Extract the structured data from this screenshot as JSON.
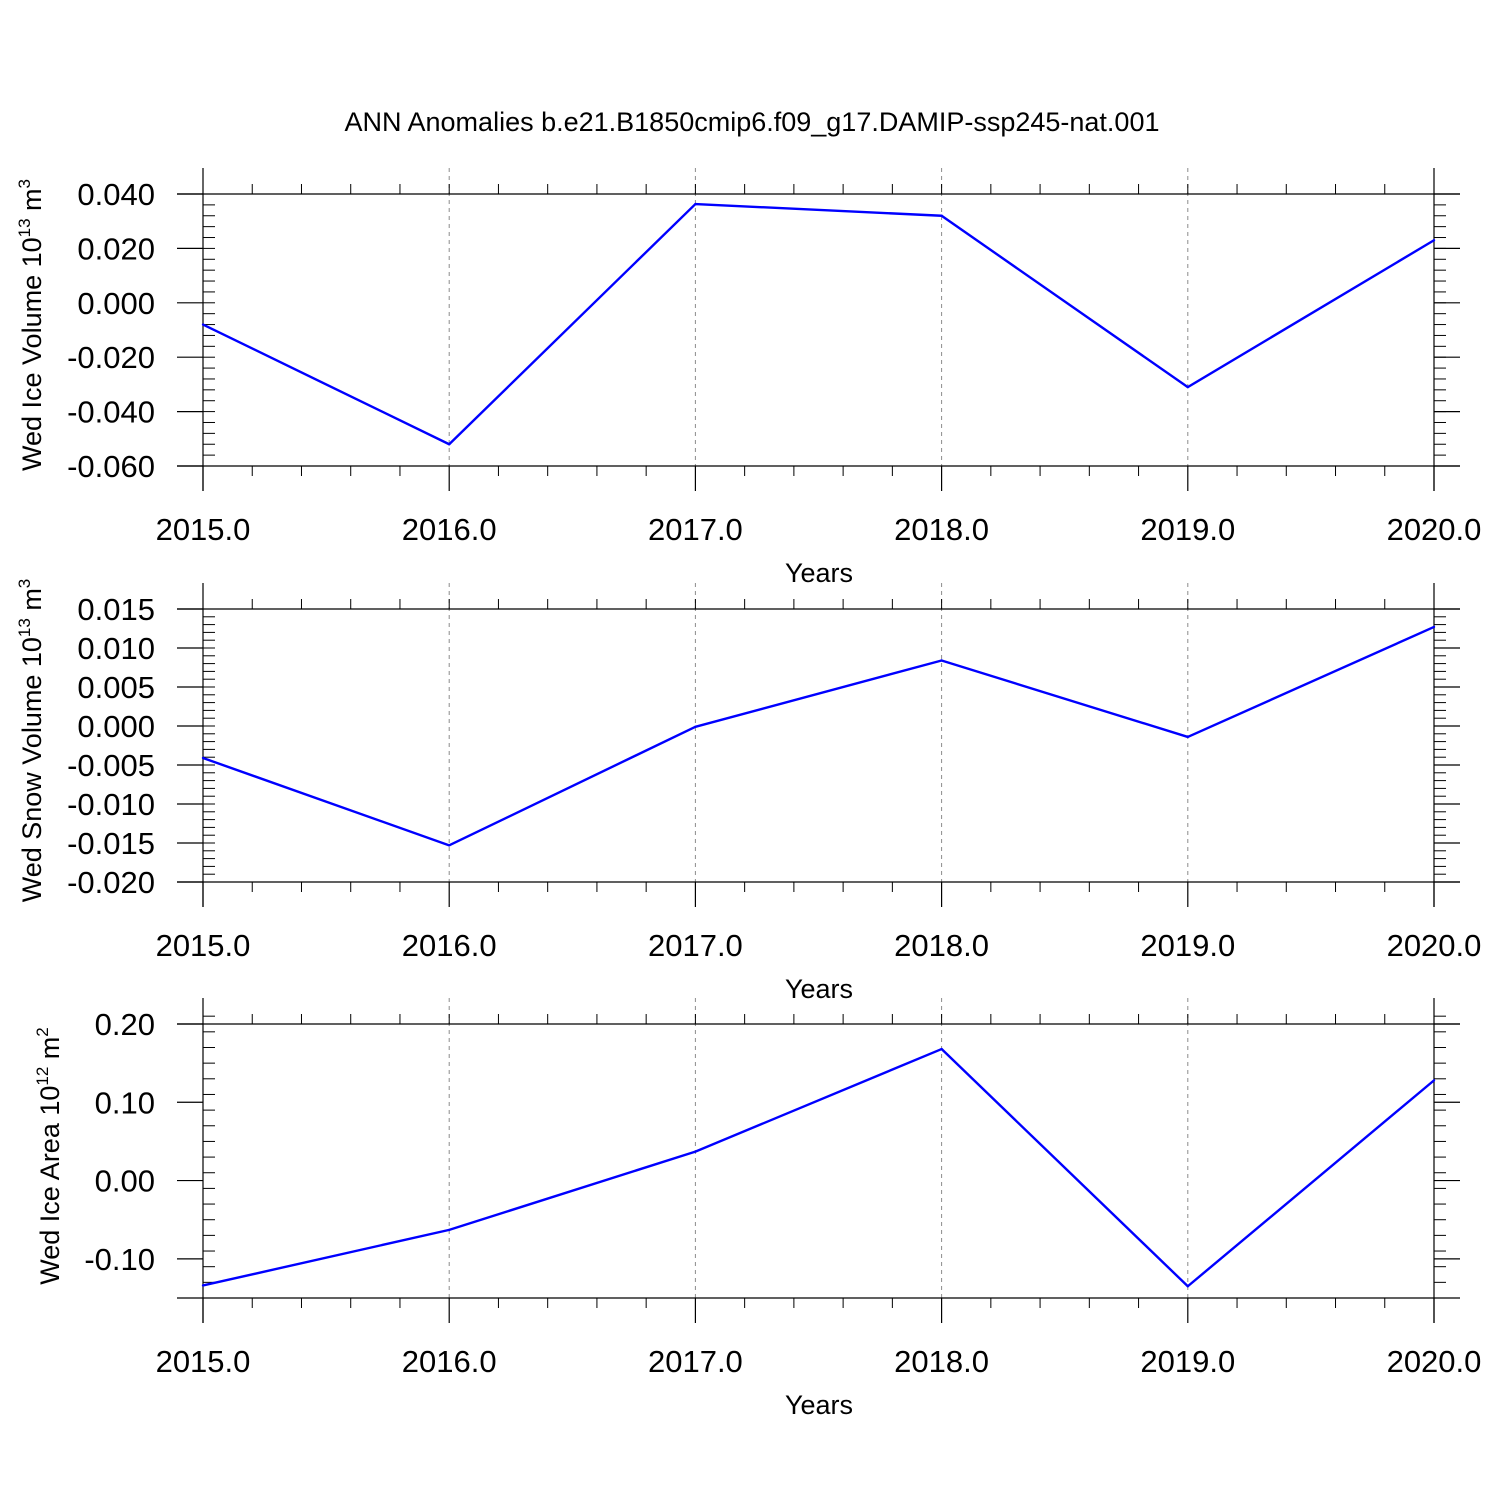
{
  "title": "ANN Anomalies b.e21.B1850cmip6.f09_g17.DAMIP-ssp245-nat.001",
  "line_color": "#0000ff",
  "grid_color": "#8c8c8c",
  "chart_data": [
    {
      "type": "line",
      "ylabel": "Wed Ice Volume 10",
      "ylabel_exp": "13",
      "ylabel_unit": " m",
      "ylabel_unit_exp": "3",
      "xlabel": "Years",
      "x": [
        2015,
        2016,
        2017,
        2018,
        2019,
        2020
      ],
      "x_tick_labels": [
        "2015.0",
        "2016.0",
        "2017.0",
        "2018.0",
        "2019.0",
        "2020.0"
      ],
      "values": [
        -0.008,
        -0.052,
        0.0363,
        0.032,
        -0.031,
        0.023
      ],
      "ylim": [
        -0.06,
        0.04
      ],
      "y_ticks": [
        -0.06,
        -0.04,
        -0.02,
        0.0,
        0.02,
        0.04
      ],
      "y_tick_labels": [
        "-0.060",
        "-0.040",
        "-0.020",
        "0.000",
        "0.020",
        "0.040"
      ],
      "y_minor_step": 0.004,
      "grid": "vertical dashed"
    },
    {
      "type": "line",
      "ylabel": "Wed Snow Volume 10",
      "ylabel_exp": "13",
      "ylabel_unit": " m",
      "ylabel_unit_exp": "3",
      "xlabel": "Years",
      "x": [
        2015,
        2016,
        2017,
        2018,
        2019,
        2020
      ],
      "x_tick_labels": [
        "2015.0",
        "2016.0",
        "2017.0",
        "2018.0",
        "2019.0",
        "2020.0"
      ],
      "values": [
        -0.0041,
        -0.0153,
        -0.0001,
        0.0084,
        -0.0014,
        0.0127
      ],
      "ylim": [
        -0.02,
        0.015
      ],
      "y_ticks": [
        -0.02,
        -0.015,
        -0.01,
        -0.005,
        0.0,
        0.005,
        0.01,
        0.015
      ],
      "y_tick_labels": [
        "-0.020",
        "-0.015",
        "-0.010",
        "-0.005",
        "0.000",
        "0.005",
        "0.010",
        "0.015"
      ],
      "y_minor_step": 0.001,
      "grid": "vertical dashed"
    },
    {
      "type": "line",
      "ylabel": "Wed Ice Area 10",
      "ylabel_exp": "12",
      "ylabel_unit": " m",
      "ylabel_unit_exp": "2",
      "xlabel": "Years",
      "x": [
        2015,
        2016,
        2017,
        2018,
        2019,
        2020
      ],
      "x_tick_labels": [
        "2015.0",
        "2016.0",
        "2017.0",
        "2018.0",
        "2019.0",
        "2020.0"
      ],
      "values": [
        -0.134,
        -0.063,
        0.037,
        0.168,
        -0.135,
        0.128
      ],
      "ylim": [
        -0.15,
        0.2
      ],
      "y_ticks": [
        -0.1,
        0.0,
        0.1,
        0.2
      ],
      "y_tick_labels": [
        "-0.10",
        "0.00",
        "0.10",
        "0.20"
      ],
      "y_minor_step": 0.02,
      "grid": "vertical dashed"
    }
  ]
}
